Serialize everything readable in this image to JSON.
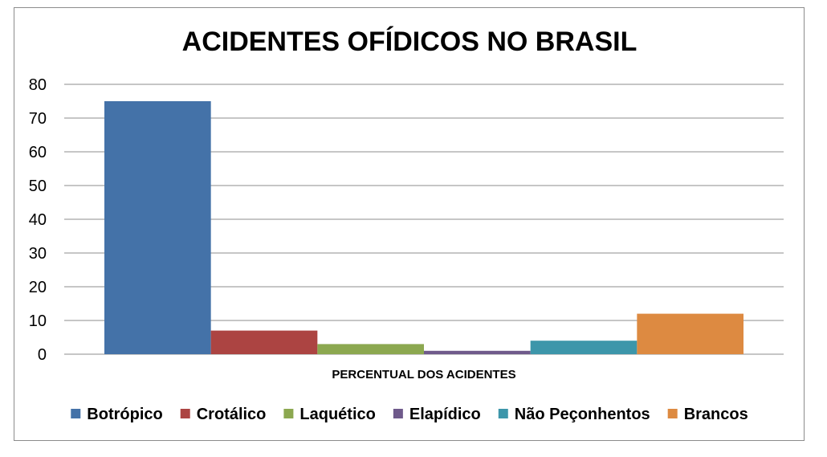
{
  "chart_data": {
    "type": "bar",
    "title": "ACIDENTES OFÍDICOS NO BRASIL",
    "categories": [
      "PERCENTUAL DOS ACIDENTES"
    ],
    "series": [
      {
        "name": "Botrópico",
        "values": [
          75
        ],
        "color": "#4472a8"
      },
      {
        "name": "Crotálico",
        "values": [
          7
        ],
        "color": "#ac4442"
      },
      {
        "name": "Laquético",
        "values": [
          3
        ],
        "color": "#8ca850"
      },
      {
        "name": "Elapídico",
        "values": [
          1
        ],
        "color": "#6f5a8b"
      },
      {
        "name": "Não Peçonhentos",
        "values": [
          4
        ],
        "color": "#3d96aa"
      },
      {
        "name": "Brancos",
        "values": [
          12
        ],
        "color": "#dd8a41"
      }
    ],
    "xlabel": "",
    "ylabel": "",
    "ylim": [
      0,
      80
    ],
    "yticks": [
      0,
      10,
      20,
      30,
      40,
      50,
      60,
      70,
      80
    ],
    "grid": true,
    "legend_position": "bottom"
  }
}
